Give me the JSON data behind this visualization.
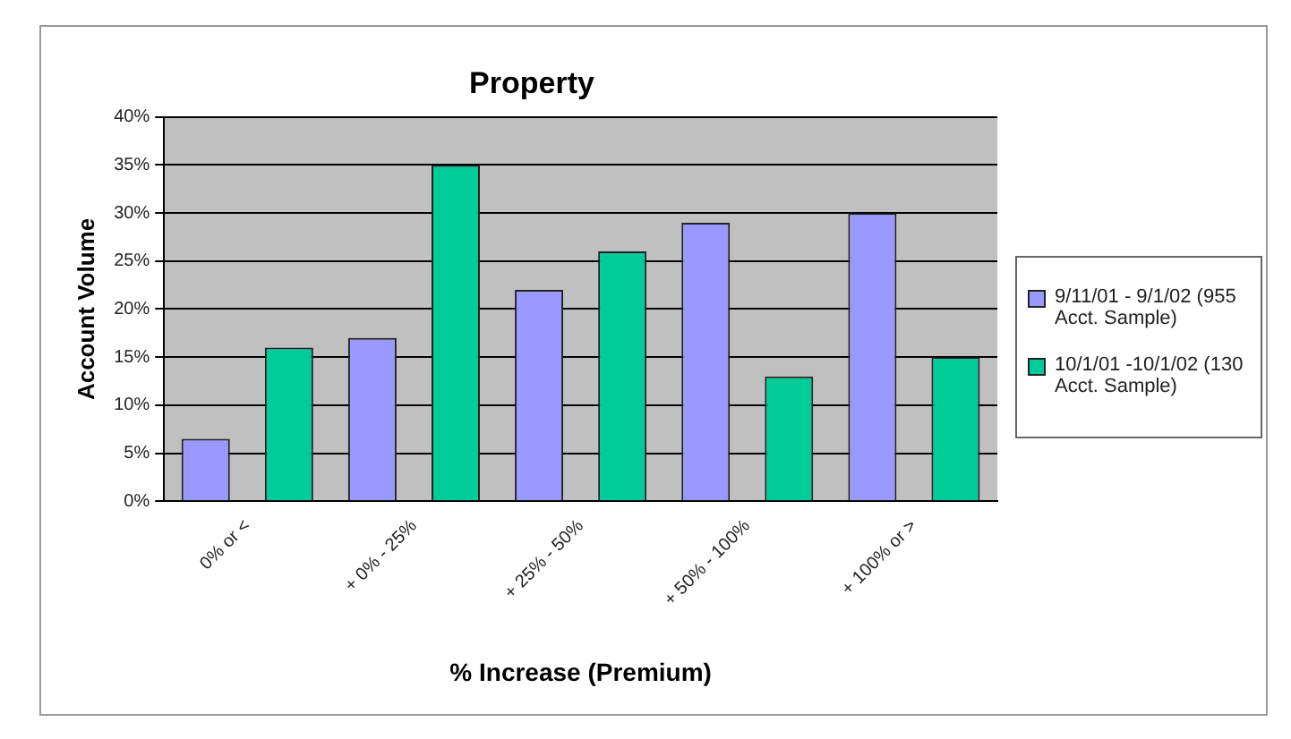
{
  "chart_data": {
    "type": "bar",
    "title": "Property",
    "xlabel": "% Increase (Premium)",
    "ylabel": "Account Volume",
    "categories": [
      "0% or <",
      "+ 0% - 25%",
      "+ 25% - 50%",
      "+ 50% - 100%",
      "+ 100% or >"
    ],
    "series": [
      {
        "name": "9/11/01 - 9/1/02 (955 Acct. Sample)",
        "color": "#9999ff",
        "values": [
          6.5,
          17,
          22,
          29,
          30
        ]
      },
      {
        "name": "10/1/01 -10/1/02 (130 Acct. Sample)",
        "color": "#00cc99",
        "values": [
          16,
          35,
          26,
          13,
          15
        ]
      }
    ],
    "ylim": [
      0,
      40
    ],
    "yticks": [
      {
        "value": 0,
        "label": "0%"
      },
      {
        "value": 5,
        "label": "5%"
      },
      {
        "value": 10,
        "label": "10%"
      },
      {
        "value": 15,
        "label": "15%"
      },
      {
        "value": 20,
        "label": "20%"
      },
      {
        "value": 25,
        "label": "25%"
      },
      {
        "value": 30,
        "label": "30%"
      },
      {
        "value": 35,
        "label": "35%"
      },
      {
        "value": 40,
        "label": "40%"
      }
    ],
    "grid": "y",
    "legend": "right"
  }
}
